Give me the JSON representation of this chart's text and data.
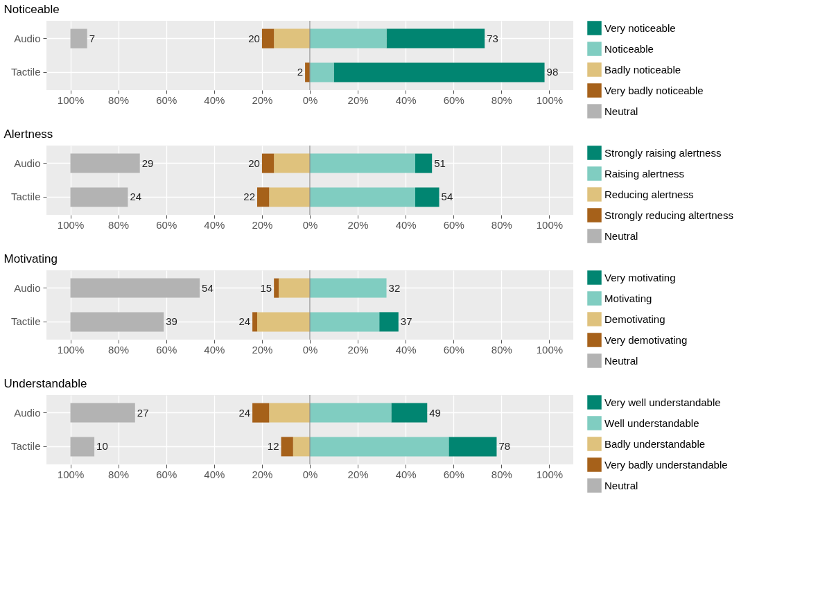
{
  "chart_data": [
    {
      "type": "bar",
      "orientation": "horizontal",
      "title": "Noticeable",
      "categories": [
        "Audio",
        "Tactile"
      ],
      "xlim": [
        -110,
        110
      ],
      "xticks": [
        {
          "value": -100,
          "label": "100%"
        },
        {
          "value": -80,
          "label": "80%"
        },
        {
          "value": -60,
          "label": "60%"
        },
        {
          "value": -40,
          "label": "40%"
        },
        {
          "value": -20,
          "label": "20%"
        },
        {
          "value": 0,
          "label": "0%"
        },
        {
          "value": 20,
          "label": "20%"
        },
        {
          "value": 40,
          "label": "40%"
        },
        {
          "value": 60,
          "label": "60%"
        },
        {
          "value": 80,
          "label": "80%"
        },
        {
          "value": 100,
          "label": "100%"
        }
      ],
      "grid": true,
      "legend": "right",
      "ref_lines": [
        {
          "axis": "x",
          "value": 0,
          "color": "#8c8c8c"
        }
      ],
      "series": [
        {
          "name": "Very noticeable",
          "color": "#018571",
          "values": [
            41,
            88
          ],
          "base": [
            32,
            10
          ]
        },
        {
          "name": "Noticeable",
          "color": "#80cdc1",
          "values": [
            32,
            10
          ],
          "base": [
            0,
            0
          ]
        },
        {
          "name": "Badly noticeable",
          "color": "#dfc27d",
          "values": [
            -15,
            null
          ],
          "base": [
            0,
            null
          ]
        },
        {
          "name": "Very badly noticeable",
          "color": "#a6611a",
          "values": [
            -5,
            -2
          ],
          "base": [
            -15,
            0
          ]
        },
        {
          "name": "Neutral",
          "color": "#b3b3b3",
          "values": [
            7,
            null
          ],
          "base": [
            -100,
            null
          ],
          "value_labels": [
            "7",
            null
          ]
        }
      ],
      "annotations": [
        {
          "text": "73",
          "x": 73,
          "y": "Audio"
        },
        {
          "text": "98",
          "x": 98,
          "y": "Tactile"
        },
        {
          "text": "20",
          "x": -20,
          "y": "Audio"
        },
        {
          "text": "2",
          "x": -2,
          "y": "Tactile"
        }
      ]
    },
    {
      "type": "bar",
      "orientation": "horizontal",
      "title": "Alertness",
      "categories": [
        "Audio",
        "Tactile"
      ],
      "xlim": [
        -110,
        110
      ],
      "xticks": [
        {
          "value": -100,
          "label": "100%"
        },
        {
          "value": -80,
          "label": "80%"
        },
        {
          "value": -60,
          "label": "60%"
        },
        {
          "value": -40,
          "label": "40%"
        },
        {
          "value": -20,
          "label": "20%"
        },
        {
          "value": 0,
          "label": "0%"
        },
        {
          "value": 20,
          "label": "20%"
        },
        {
          "value": 40,
          "label": "40%"
        },
        {
          "value": 60,
          "label": "60%"
        },
        {
          "value": 80,
          "label": "80%"
        },
        {
          "value": 100,
          "label": "100%"
        }
      ],
      "grid": true,
      "legend": "right",
      "ref_lines": [
        {
          "axis": "x",
          "value": 0,
          "color": "#8c8c8c"
        }
      ],
      "series": [
        {
          "name": "Strongly raising alertness",
          "color": "#018571",
          "values": [
            7,
            10
          ],
          "base": [
            44,
            44
          ]
        },
        {
          "name": "Raising alertness",
          "color": "#80cdc1",
          "values": [
            44,
            44
          ],
          "base": [
            0,
            0
          ]
        },
        {
          "name": "Reducing alertness",
          "color": "#dfc27d",
          "values": [
            -15,
            -17
          ],
          "base": [
            0,
            0
          ]
        },
        {
          "name": "Strongly reducing altertness",
          "color": "#a6611a",
          "values": [
            -5,
            -5
          ],
          "base": [
            -15,
            -17
          ]
        },
        {
          "name": "Neutral",
          "color": "#b3b3b3",
          "values": [
            29,
            24
          ],
          "base": [
            -100,
            -100
          ],
          "value_labels": [
            "29",
            "24"
          ]
        }
      ],
      "annotations": [
        {
          "text": "51",
          "x": 51,
          "y": "Audio"
        },
        {
          "text": "54",
          "x": 54,
          "y": "Tactile"
        },
        {
          "text": "20",
          "x": -20,
          "y": "Audio"
        },
        {
          "text": "22",
          "x": -22,
          "y": "Tactile"
        }
      ]
    },
    {
      "type": "bar",
      "orientation": "horizontal",
      "title": "Motivating",
      "categories": [
        "Audio",
        "Tactile"
      ],
      "xlim": [
        -110,
        110
      ],
      "xticks": [
        {
          "value": -100,
          "label": "100%"
        },
        {
          "value": -80,
          "label": "80%"
        },
        {
          "value": -60,
          "label": "60%"
        },
        {
          "value": -40,
          "label": "40%"
        },
        {
          "value": -20,
          "label": "20%"
        },
        {
          "value": 0,
          "label": "0%"
        },
        {
          "value": 20,
          "label": "20%"
        },
        {
          "value": 40,
          "label": "40%"
        },
        {
          "value": 60,
          "label": "60%"
        },
        {
          "value": 80,
          "label": "80%"
        },
        {
          "value": 100,
          "label": "100%"
        }
      ],
      "grid": true,
      "legend": "right",
      "ref_lines": [
        {
          "axis": "x",
          "value": 0,
          "color": "#8c8c8c"
        }
      ],
      "series": [
        {
          "name": "Very motivating",
          "color": "#018571",
          "values": [
            null,
            8
          ],
          "base": [
            null,
            29
          ]
        },
        {
          "name": "Motivating",
          "color": "#80cdc1",
          "values": [
            32,
            29
          ],
          "base": [
            0,
            0
          ]
        },
        {
          "name": "Demotivating",
          "color": "#dfc27d",
          "values": [
            -13,
            -22
          ],
          "base": [
            0,
            0
          ]
        },
        {
          "name": "Very demotivating",
          "color": "#a6611a",
          "values": [
            -2,
            -2
          ],
          "base": [
            -13,
            -22
          ]
        },
        {
          "name": "Neutral",
          "color": "#b3b3b3",
          "values": [
            54,
            39
          ],
          "base": [
            -100,
            -100
          ],
          "value_labels": [
            "54",
            "39"
          ]
        }
      ],
      "annotations": [
        {
          "text": "32",
          "x": 32,
          "y": "Audio"
        },
        {
          "text": "37",
          "x": 37,
          "y": "Tactile"
        },
        {
          "text": "15",
          "x": -15,
          "y": "Audio"
        },
        {
          "text": "24",
          "x": -24,
          "y": "Tactile"
        }
      ]
    },
    {
      "type": "bar",
      "orientation": "horizontal",
      "title": "Understandable",
      "categories": [
        "Audio",
        "Tactile"
      ],
      "xlim": [
        -110,
        110
      ],
      "xticks": [
        {
          "value": -100,
          "label": "100%"
        },
        {
          "value": -80,
          "label": "80%"
        },
        {
          "value": -60,
          "label": "60%"
        },
        {
          "value": -40,
          "label": "40%"
        },
        {
          "value": -20,
          "label": "20%"
        },
        {
          "value": 0,
          "label": "0%"
        },
        {
          "value": 20,
          "label": "20%"
        },
        {
          "value": 40,
          "label": "40%"
        },
        {
          "value": 60,
          "label": "60%"
        },
        {
          "value": 80,
          "label": "80%"
        },
        {
          "value": 100,
          "label": "100%"
        }
      ],
      "grid": true,
      "legend": "right",
      "ref_lines": [
        {
          "axis": "x",
          "value": 0,
          "color": "#8c8c8c"
        }
      ],
      "series": [
        {
          "name": "Very well understandable",
          "color": "#018571",
          "values": [
            15,
            20
          ],
          "base": [
            34,
            58
          ]
        },
        {
          "name": "Well understandable",
          "color": "#80cdc1",
          "values": [
            34,
            58
          ],
          "base": [
            0,
            0
          ]
        },
        {
          "name": "Badly understandable",
          "color": "#dfc27d",
          "values": [
            -17,
            -7
          ],
          "base": [
            0,
            0
          ]
        },
        {
          "name": "Very badly understandable",
          "color": "#a6611a",
          "values": [
            -7,
            -5
          ],
          "base": [
            -17,
            -7
          ]
        },
        {
          "name": "Neutral",
          "color": "#b3b3b3",
          "values": [
            27,
            10
          ],
          "base": [
            -100,
            -100
          ],
          "value_labels": [
            "27",
            "10"
          ]
        }
      ],
      "annotations": [
        {
          "text": "49",
          "x": 49,
          "y": "Audio"
        },
        {
          "text": "78",
          "x": 78,
          "y": "Tactile"
        },
        {
          "text": "24",
          "x": -24,
          "y": "Audio"
        },
        {
          "text": "12",
          "x": -12,
          "y": "Tactile"
        }
      ]
    }
  ]
}
